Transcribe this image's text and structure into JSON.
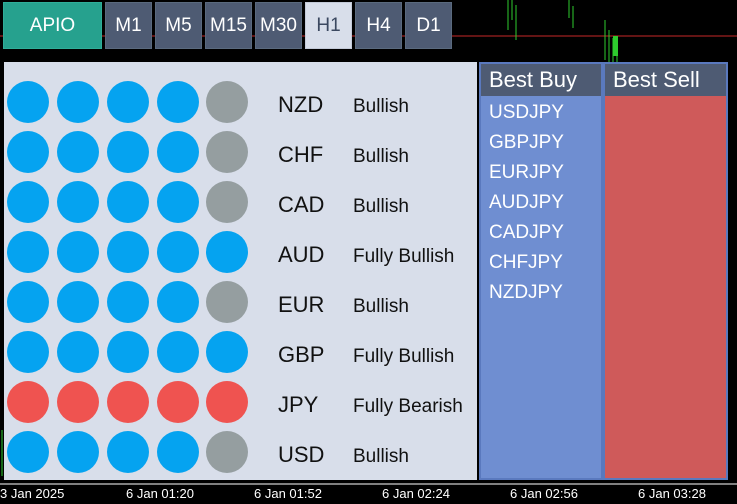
{
  "tabs": {
    "apio": "APIO",
    "timeframes": [
      "M1",
      "M5",
      "M15",
      "M30",
      "H1",
      "H4",
      "D1"
    ],
    "active": "H1"
  },
  "rows": [
    {
      "currency": "NZD",
      "status": "Bullish",
      "dots": [
        "blue",
        "blue",
        "blue",
        "blue",
        "gray"
      ]
    },
    {
      "currency": "CHF",
      "status": "Bullish",
      "dots": [
        "blue",
        "blue",
        "blue",
        "blue",
        "gray"
      ]
    },
    {
      "currency": "CAD",
      "status": "Bullish",
      "dots": [
        "blue",
        "blue",
        "blue",
        "blue",
        "gray"
      ]
    },
    {
      "currency": "AUD",
      "status": "Fully Bullish",
      "dots": [
        "blue",
        "blue",
        "blue",
        "blue",
        "blue"
      ]
    },
    {
      "currency": "EUR",
      "status": "Bullish",
      "dots": [
        "blue",
        "blue",
        "blue",
        "blue",
        "gray"
      ]
    },
    {
      "currency": "GBP",
      "status": "Fully Bullish",
      "dots": [
        "blue",
        "blue",
        "blue",
        "blue",
        "blue"
      ]
    },
    {
      "currency": "JPY",
      "status": "Fully Bearish",
      "dots": [
        "red",
        "red",
        "red",
        "red",
        "red"
      ]
    },
    {
      "currency": "USD",
      "status": "Bullish",
      "dots": [
        "blue",
        "blue",
        "blue",
        "blue",
        "gray"
      ]
    }
  ],
  "colors": {
    "blue": "#05a3f0",
    "gray": "#959ea0",
    "red": "#ef5350"
  },
  "best_buy": {
    "title": "Best Buy",
    "pairs": [
      "USDJPY",
      "GBPJPY",
      "EURJPY",
      "AUDJPY",
      "CADJPY",
      "CHFJPY",
      "NZDJPY"
    ]
  },
  "best_sell": {
    "title": "Best Sell",
    "pairs": []
  },
  "time_axis": [
    "3 Jan 2025",
    "6 Jan 01:20",
    "6 Jan 01:52",
    "6 Jan 02:24",
    "6 Jan 02:56",
    "6 Jan 03:28"
  ]
}
